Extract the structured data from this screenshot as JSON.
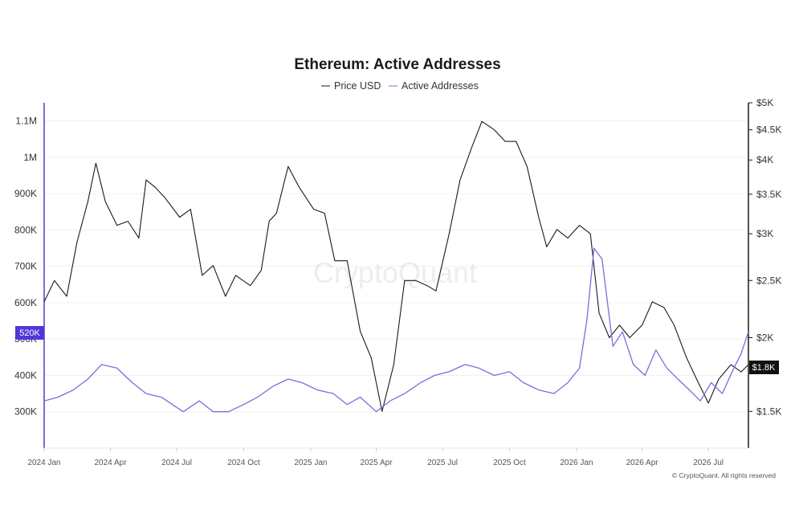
{
  "chart_data": {
    "type": "line",
    "title": "Ethereum: Active Addresses",
    "legend": {
      "placement": "top-center",
      "items": [
        "Price USD",
        "Active Addresses"
      ]
    },
    "x_ticks": [
      "2024 Jan",
      "2024 Apr",
      "2024 Jul",
      "2024 Oct",
      "2025 Jan",
      "2025 Apr",
      "2025 Jul",
      "2025 Oct",
      "2026 Jan",
      "2026 Apr",
      "2026 Jul"
    ],
    "x_range": [
      "2024-01-01",
      "2026-08-25"
    ],
    "y_left": {
      "label": "Active Addresses",
      "ticks": [
        "300K",
        "400K",
        "500K",
        "600K",
        "700K",
        "800K",
        "900K",
        "1M",
        "1.1M"
      ],
      "ylim": [
        200000,
        1150000
      ]
    },
    "y_right": {
      "label": "Price USD",
      "scale": "log",
      "ticks": [
        "$1.5K",
        "$2K",
        "$2.5K",
        "$3K",
        "$3.5K",
        "$4K",
        "$4.5K",
        "$5K"
      ],
      "ylim": [
        1300,
        5000
      ]
    },
    "grid": true,
    "current_values": {
      "active_addresses": "520K",
      "price": "$1.8K"
    },
    "series": [
      {
        "name": "Price USD",
        "color": "#1a1a1a",
        "x": [
          "2024-01-01",
          "2024-01-15",
          "2024-02-01",
          "2024-02-15",
          "2024-03-01",
          "2024-03-12",
          "2024-03-25",
          "2024-04-10",
          "2024-04-25",
          "2024-05-10",
          "2024-05-20",
          "2024-06-01",
          "2024-06-15",
          "2024-07-05",
          "2024-07-20",
          "2024-08-05",
          "2024-08-20",
          "2024-09-06",
          "2024-09-20",
          "2024-10-10",
          "2024-10-25",
          "2024-11-05",
          "2024-11-15",
          "2024-12-01",
          "2024-12-16",
          "2025-01-05",
          "2025-01-20",
          "2025-02-03",
          "2025-02-20",
          "2025-03-10",
          "2025-03-25",
          "2025-04-09",
          "2025-04-25",
          "2025-05-10",
          "2025-05-25",
          "2025-06-10",
          "2025-06-22",
          "2025-07-10",
          "2025-07-25",
          "2025-08-10",
          "2025-08-24",
          "2025-09-10",
          "2025-09-25",
          "2025-10-10",
          "2025-10-25",
          "2025-11-10",
          "2025-11-21",
          "2025-12-05",
          "2025-12-20",
          "2026-01-05",
          "2026-01-20",
          "2026-02-01",
          "2026-02-15",
          "2026-03-01",
          "2026-03-15",
          "2026-04-01",
          "2026-04-15",
          "2026-05-01",
          "2026-05-15",
          "2026-06-01",
          "2026-06-15",
          "2026-07-01",
          "2026-07-15",
          "2026-08-01",
          "2026-08-15",
          "2026-08-25"
        ],
        "values": [
          2300,
          2500,
          2350,
          2900,
          3400,
          3950,
          3400,
          3100,
          3150,
          2950,
          3700,
          3600,
          3450,
          3200,
          3300,
          2550,
          2650,
          2350,
          2550,
          2450,
          2600,
          3150,
          3250,
          3900,
          3600,
          3300,
          3250,
          2700,
          2700,
          2050,
          1850,
          1500,
          1800,
          2500,
          2500,
          2450,
          2400,
          3000,
          3700,
          4200,
          4650,
          4500,
          4300,
          4300,
          3900,
          3200,
          2850,
          3050,
          2950,
          3100,
          3000,
          2200,
          2000,
          2100,
          2000,
          2100,
          2300,
          2250,
          2100,
          1850,
          1700,
          1550,
          1700,
          1800,
          1750,
          1800
        ]
      },
      {
        "name": "Active Addresses",
        "color": "#7b6cdc",
        "x": [
          "2024-01-01",
          "2024-01-20",
          "2024-02-10",
          "2024-03-01",
          "2024-03-20",
          "2024-04-10",
          "2024-05-01",
          "2024-05-20",
          "2024-06-10",
          "2024-06-25",
          "2024-07-10",
          "2024-08-01",
          "2024-08-20",
          "2024-09-10",
          "2024-10-01",
          "2024-10-20",
          "2024-11-10",
          "2024-12-01",
          "2024-12-20",
          "2025-01-10",
          "2025-02-01",
          "2025-02-20",
          "2025-03-10",
          "2025-04-01",
          "2025-04-20",
          "2025-05-10",
          "2025-06-01",
          "2025-06-20",
          "2025-07-10",
          "2025-08-01",
          "2025-08-20",
          "2025-09-10",
          "2025-10-01",
          "2025-10-20",
          "2025-11-10",
          "2025-12-01",
          "2025-12-20",
          "2026-01-05",
          "2026-01-15",
          "2026-01-25",
          "2026-02-05",
          "2026-02-20",
          "2026-03-05",
          "2026-03-20",
          "2026-04-05",
          "2026-04-20",
          "2026-05-05",
          "2026-05-20",
          "2026-06-05",
          "2026-06-20",
          "2026-07-05",
          "2026-07-20",
          "2026-08-05",
          "2026-08-15",
          "2026-08-25"
        ],
        "values": [
          330000,
          340000,
          360000,
          390000,
          430000,
          420000,
          380000,
          350000,
          340000,
          320000,
          300000,
          330000,
          300000,
          300000,
          320000,
          340000,
          370000,
          390000,
          380000,
          360000,
          350000,
          320000,
          340000,
          300000,
          330000,
          350000,
          380000,
          400000,
          410000,
          430000,
          420000,
          400000,
          410000,
          380000,
          360000,
          350000,
          380000,
          420000,
          550000,
          750000,
          720000,
          480000,
          520000,
          430000,
          400000,
          470000,
          420000,
          390000,
          360000,
          330000,
          380000,
          350000,
          420000,
          460000,
          520000
        ]
      }
    ],
    "watermark": "CryptoQuant",
    "copyright": "© CryptoQuant. All rights reserved"
  }
}
